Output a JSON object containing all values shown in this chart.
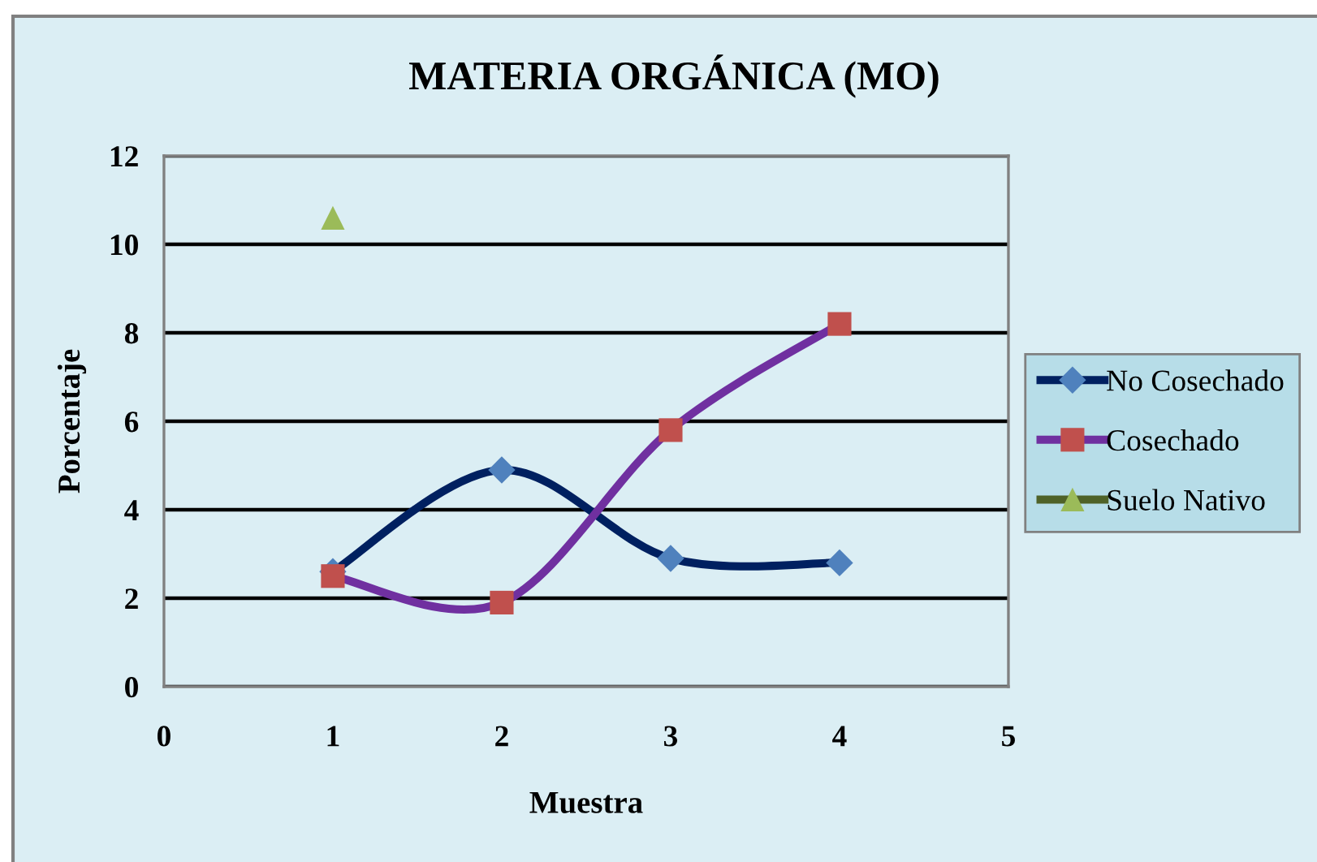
{
  "chart_data": {
    "type": "line",
    "title": "MATERIA ORGÁNICA (MO)",
    "xlabel": "Muestra",
    "ylabel": "Porcentaje",
    "x": [
      1,
      2,
      3,
      4
    ],
    "series": [
      {
        "name": "No Cosechado",
        "color": "#002060",
        "colors": [
          "#4f81bd",
          "#4f81bd",
          "#4f81bd",
          "#4f81bd"
        ],
        "marker": "diamond",
        "values": [
          2.6,
          4.9,
          2.9,
          2.8
        ]
      },
      {
        "name": "Cosechado",
        "color": "#7030a0",
        "colors": [
          "#c0504d",
          "#c0504d",
          "#c0504d",
          "#c0504d"
        ],
        "marker": "square",
        "values": [
          2.5,
          1.9,
          5.8,
          8.2
        ]
      },
      {
        "name": "Suelo Nativo",
        "color": "#4f6228",
        "colors": [
          "#9bbb59"
        ],
        "marker": "triangle",
        "x": [
          1
        ],
        "values": [
          10.6
        ]
      }
    ],
    "xlim": [
      0,
      5
    ],
    "xticks": [
      0,
      1,
      2,
      3,
      4,
      5
    ],
    "ylim": [
      0,
      12
    ],
    "yticks": [
      0,
      2,
      4,
      6,
      8,
      10,
      12
    ],
    "grid": "y",
    "legend": "right",
    "line_style": "solid"
  }
}
